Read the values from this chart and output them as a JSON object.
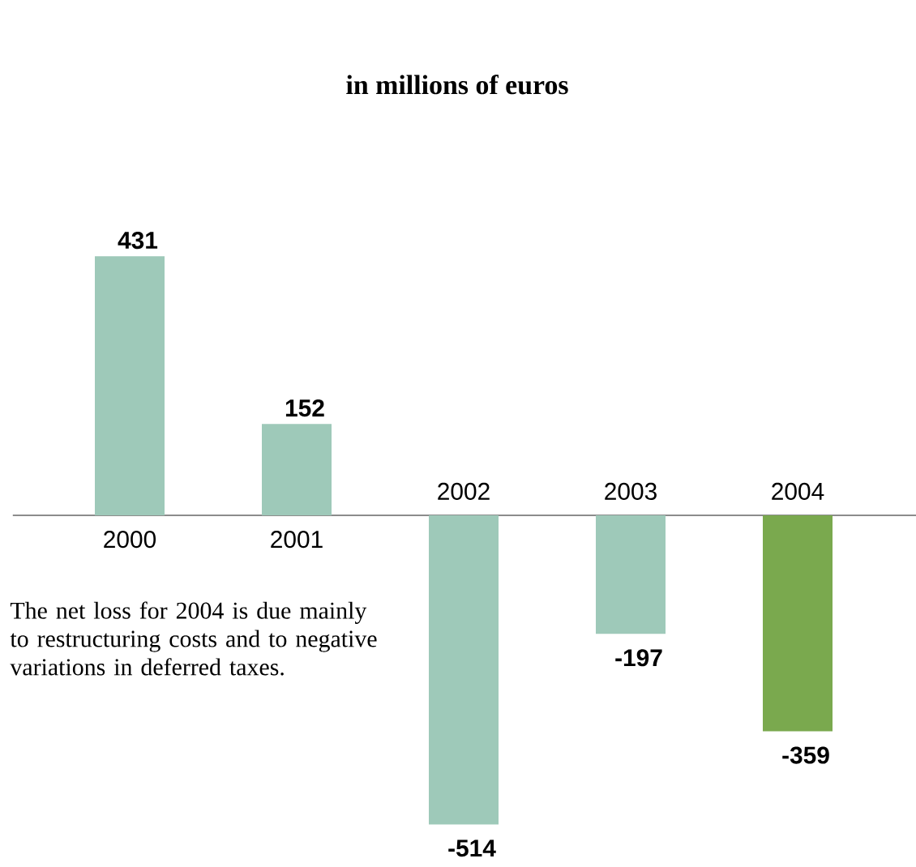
{
  "chart_data": {
    "type": "bar",
    "title": "in millions of euros",
    "categories": [
      "2000",
      "2001",
      "2002",
      "2003",
      "2004"
    ],
    "values": [
      431,
      152,
      -514,
      -197,
      -359
    ],
    "colors": [
      "#9ec9b9",
      "#9ec9b9",
      "#9ec9b9",
      "#9ec9b9",
      "#7aa94e"
    ],
    "data_labels": true,
    "annotations": [
      "The net loss for 2004 is due mainly to restructuring costs and to negative variations in deferred taxes."
    ]
  }
}
